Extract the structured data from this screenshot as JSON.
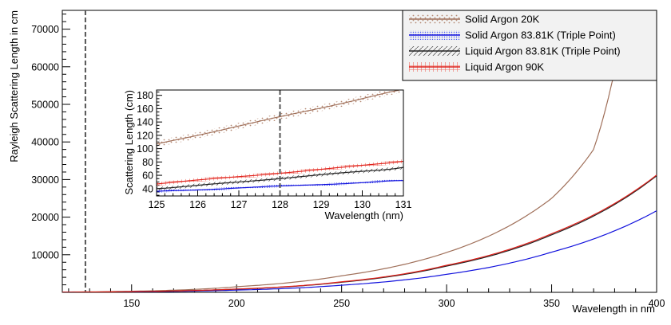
{
  "chart_data": [
    {
      "type": "line",
      "xlabel": "Wavelength in nm",
      "ylabel": "Rayleigh Scattering Length in cm",
      "xlim": [
        117,
        400
      ],
      "ylim": [
        0,
        75000
      ],
      "xticks": [
        150,
        200,
        250,
        300,
        350,
        400
      ],
      "yticks": [
        10000,
        20000,
        30000,
        40000,
        50000,
        60000,
        70000
      ],
      "xtick_labels": [
        "150",
        "200",
        "250",
        "300",
        "350",
        "400"
      ],
      "ytick_labels": [
        "10000",
        "20000",
        "30000",
        "40000",
        "50000",
        "60000",
        "70000"
      ],
      "vline_x": 128,
      "grid": false,
      "legend_position": "top-right",
      "series": [
        {
          "name": "Solid Argon 20K",
          "color": "#a0705a",
          "x": [
            117,
            150,
            200,
            250,
            300,
            350,
            370,
            380
          ],
          "y": [
            77,
            300,
            1500,
            4400,
            10600,
            25000,
            38000,
            59000
          ]
        },
        {
          "name": "Solid Argon 83.81K (Triple Point)",
          "color": "#1111dd",
          "x": [
            117,
            150,
            200,
            250,
            300,
            350,
            400
          ],
          "y": [
            26,
            140,
            600,
            1900,
            4800,
            10700,
            21700
          ]
        },
        {
          "name": "Liquid Argon 83.81K (Triple Point)",
          "color": "#222222",
          "x": [
            117,
            150,
            200,
            250,
            300,
            350,
            400
          ],
          "y": [
            36,
            200,
            850,
            2700,
            7000,
            15300,
            31000
          ]
        },
        {
          "name": "Liquid Argon 90K",
          "color": "#e0201a",
          "x": [
            117,
            150,
            200,
            250,
            300,
            350,
            400
          ],
          "y": [
            37,
            210,
            880,
            2800,
            7200,
            15600,
            31200
          ]
        }
      ]
    },
    {
      "type": "line",
      "xlabel": "Wavelength (nm)",
      "ylabel": "Scattering Length (cm)",
      "xlim": [
        125,
        131
      ],
      "ylim": [
        29,
        188
      ],
      "xticks": [
        125,
        126,
        127,
        128,
        129,
        130,
        131
      ],
      "yticks": [
        40,
        60,
        80,
        100,
        120,
        140,
        160,
        180
      ],
      "xtick_labels": [
        "125",
        "126",
        "127",
        "128",
        "129",
        "130",
        "131"
      ],
      "ytick_labels": [
        "40",
        "60",
        "80",
        "100",
        "120",
        "140",
        "160",
        "180"
      ],
      "vline_x": 128,
      "grid": false,
      "series": [
        {
          "name": "Solid Argon 20K",
          "color": "#a0705a",
          "x": [
            125,
            126,
            127,
            128,
            129,
            130,
            131
          ],
          "y": [
            107,
            120,
            134,
            148,
            161,
            175,
            189
          ]
        },
        {
          "name": "Solid Argon 83.81K (Triple Point)",
          "color": "#1111dd",
          "x": [
            125,
            126,
            127,
            128,
            129,
            130,
            131
          ],
          "y": [
            36,
            38,
            41,
            44,
            46,
            49,
            52
          ]
        },
        {
          "name": "Liquid Argon 83.81K (Triple Point)",
          "color": "#222222",
          "x": [
            125,
            126,
            127,
            128,
            129,
            130,
            131
          ],
          "y": [
            40,
            45,
            50,
            55,
            61,
            66,
            72
          ]
        },
        {
          "name": "Liquid Argon 90K",
          "color": "#e0201a",
          "x": [
            125,
            126,
            127,
            128,
            129,
            130,
            131
          ],
          "y": [
            47,
            53,
            58,
            63,
            69,
            75,
            81
          ]
        }
      ]
    }
  ],
  "legend": {
    "items": [
      {
        "label": "Solid Argon 20K",
        "color": "#a0705a",
        "band_color": "#b58a74"
      },
      {
        "label": "Solid Argon 83.81K (Triple Point)",
        "color": "#1111dd",
        "band_color": "#4455ee"
      },
      {
        "label": "Liquid Argon 83.81K (Triple Point)",
        "color": "#222222",
        "band_color": "#444444"
      },
      {
        "label": "Liquid Argon 90K",
        "color": "#e0201a",
        "band_color": "#ee6a5e"
      }
    ]
  }
}
